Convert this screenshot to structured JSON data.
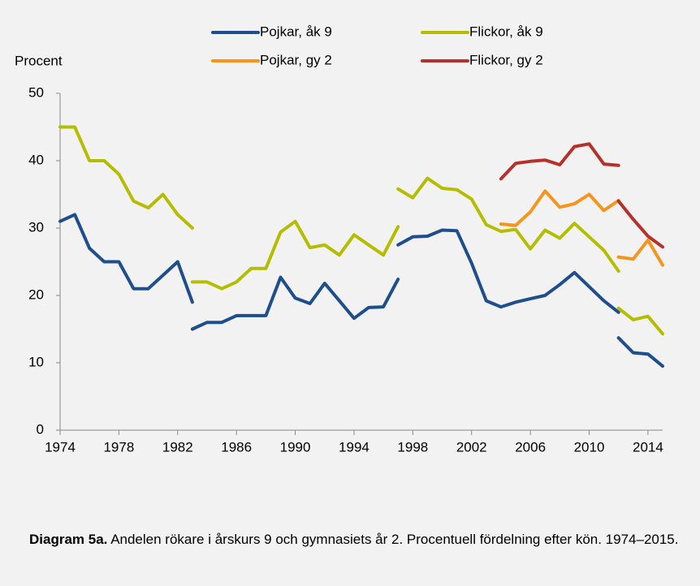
{
  "chart_data": {
    "type": "line",
    "y_label": "Procent",
    "caption_label": "Diagram 5a.",
    "caption_text": "Andelen rökare i årskurs 9 och gymnasiets år 2. Procentuell fördelning efter kön. 1974–2015.",
    "x": [
      1974,
      1975,
      1976,
      1977,
      1978,
      1979,
      1980,
      1981,
      1982,
      1983,
      null,
      1983,
      1984,
      1985,
      1986,
      1987,
      1988,
      1989,
      1990,
      1991,
      1992,
      1993,
      1994,
      1995,
      1996,
      1997,
      null,
      1997,
      1998,
      1999,
      2000,
      2001,
      2002,
      2003,
      2004,
      2005,
      2006,
      2007,
      2008,
      2009,
      2010,
      2011,
      2012,
      null,
      2012,
      2013,
      2014,
      2015
    ],
    "xlim": [
      1974,
      2015
    ],
    "xticks": [
      1974,
      1978,
      1982,
      1986,
      1990,
      1994,
      1998,
      2002,
      2006,
      2010,
      2014
    ],
    "ylim": [
      0,
      50
    ],
    "yticks": [
      0,
      10,
      20,
      30,
      40,
      50
    ],
    "grid": false,
    "series": [
      {
        "name": "Pojkar, åk 9",
        "color": "#1f4e8c",
        "values": [
          31,
          32,
          27,
          25,
          25,
          21,
          21,
          23,
          25,
          19,
          null,
          15,
          16,
          16,
          17,
          17,
          17,
          22.7,
          19.6,
          18.8,
          21.8,
          19.2,
          16.6,
          18.2,
          18.3,
          22.4,
          null,
          27.5,
          28.7,
          28.8,
          29.7,
          29.6,
          24.8,
          19.2,
          18.3,
          19.0,
          19.5,
          20.0,
          21.6,
          23.4,
          21.3,
          19.2,
          17.5,
          null,
          13.7,
          11.5,
          11.3,
          9.5
        ]
      },
      {
        "name": "Flickor, åk 9",
        "color": "#b5bd00",
        "values": [
          45,
          45,
          40,
          40,
          38,
          34,
          33,
          35,
          32,
          30,
          null,
          22,
          22,
          21,
          22,
          24,
          24,
          29.4,
          31,
          27.1,
          27.5,
          26,
          29,
          27.5,
          26,
          30.2,
          null,
          35.8,
          34.5,
          37.4,
          35.9,
          35.7,
          34.3,
          30.5,
          29.5,
          29.8,
          26.9,
          29.7,
          28.5,
          30.7,
          28.7,
          26.7,
          23.6,
          null,
          18.1,
          16.4,
          16.9,
          14.3
        ]
      },
      {
        "name": "Pojkar, gy 2",
        "color": "#f7941d",
        "values": [
          null,
          null,
          null,
          null,
          null,
          null,
          null,
          null,
          null,
          null,
          null,
          null,
          null,
          null,
          null,
          null,
          null,
          null,
          null,
          null,
          null,
          null,
          null,
          null,
          null,
          null,
          null,
          null,
          null,
          null,
          null,
          null,
          null,
          null,
          30.6,
          30.4,
          32.4,
          35.5,
          33.1,
          33.6,
          35.0,
          32.6,
          34.1,
          null,
          25.7,
          25.4,
          28.2,
          24.5
        ]
      },
      {
        "name": "Flickor, gy 2",
        "color": "#b7312c",
        "values": [
          null,
          null,
          null,
          null,
          null,
          null,
          null,
          null,
          null,
          null,
          null,
          null,
          null,
          null,
          null,
          null,
          null,
          null,
          null,
          null,
          null,
          null,
          null,
          null,
          null,
          null,
          null,
          null,
          null,
          null,
          null,
          null,
          null,
          null,
          37.3,
          39.6,
          39.9,
          40.1,
          39.4,
          42.1,
          42.5,
          39.5,
          39.3,
          null,
          34.0,
          31.3,
          28.8,
          27.2
        ]
      }
    ]
  }
}
